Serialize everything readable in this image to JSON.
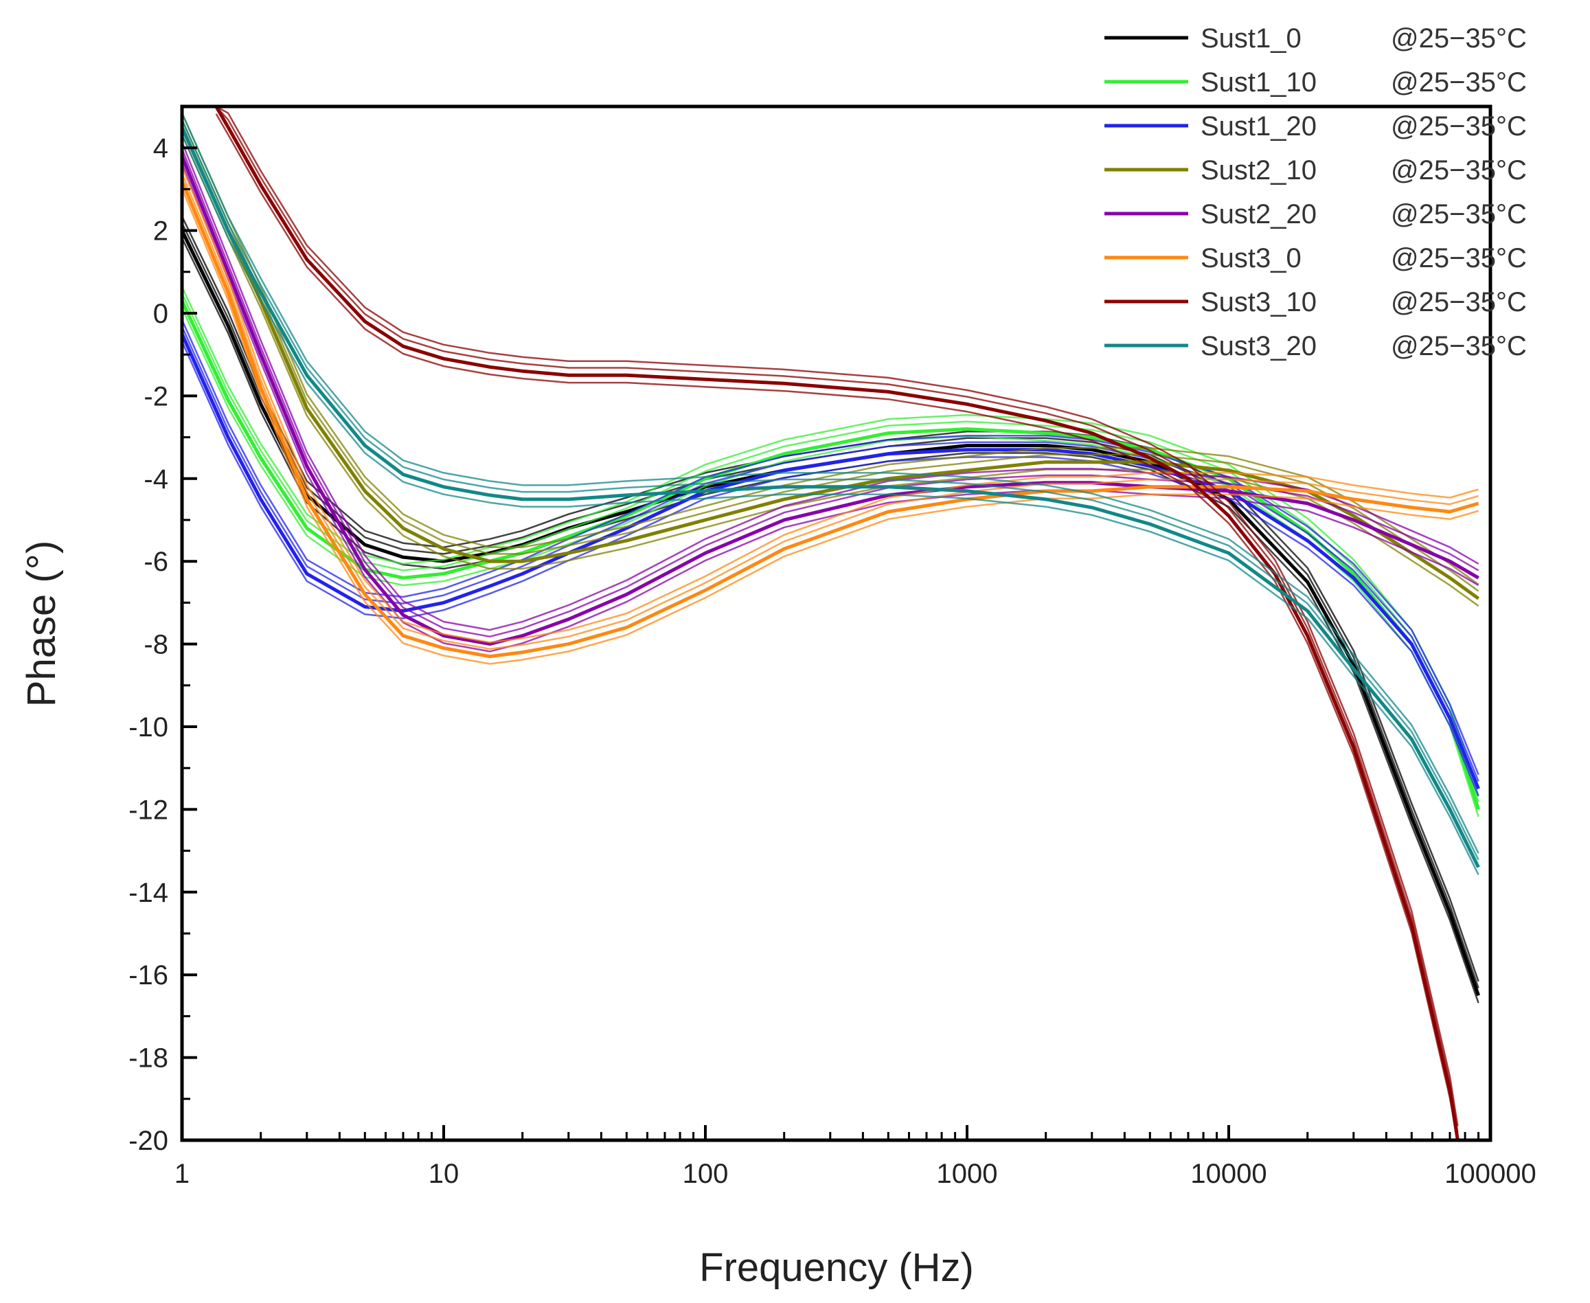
{
  "chart_data": {
    "type": "line",
    "title": "",
    "xlabel": "Frequency (Hz)",
    "ylabel": "Phase (°)",
    "xscale": "log",
    "xlim": [
      1,
      100000
    ],
    "ylim": [
      -20,
      5
    ],
    "x_ticks": [
      1,
      10,
      100,
      1000,
      10000,
      100000
    ],
    "x_tick_labels": [
      "1",
      "10",
      "100",
      "1000",
      "10000",
      "100000"
    ],
    "y_ticks": [
      4,
      2,
      0,
      -2,
      -4,
      -6,
      -8,
      -10,
      -12,
      -14,
      -16,
      -18,
      -20
    ],
    "y_tick_labels": [
      "4",
      "2",
      "0",
      "-2",
      "-4",
      "-6",
      "-8",
      "-10",
      "-12",
      "-14",
      "-16",
      "-18",
      "-20"
    ],
    "grid": false,
    "legend_position": "top-right",
    "series": [
      {
        "name": "Sust1_0",
        "condition": "@25−35°C",
        "color": "#000000",
        "x": [
          1,
          1.5,
          2,
          3,
          5,
          7,
          10,
          15,
          20,
          30,
          50,
          100,
          200,
          500,
          1000,
          2000,
          3000,
          5000,
          10000,
          20000,
          30000,
          50000,
          70000,
          90000
        ],
        "y": [
          2,
          -0.3,
          -2.2,
          -4.4,
          -5.6,
          -5.9,
          -6.0,
          -5.8,
          -5.6,
          -5.2,
          -4.8,
          -4.2,
          -3.8,
          -3.4,
          -3.2,
          -3.2,
          -3.3,
          -3.6,
          -4.5,
          -6.5,
          -8.5,
          -12.2,
          -14.5,
          -16.5
        ]
      },
      {
        "name": "Sust1_10",
        "condition": "@25−35°C",
        "color": "#33ee33",
        "x": [
          1,
          1.5,
          2,
          3,
          5,
          7,
          10,
          15,
          20,
          30,
          50,
          100,
          200,
          500,
          1000,
          2000,
          3000,
          5000,
          10000,
          20000,
          30000,
          50000,
          70000,
          90000
        ],
        "y": [
          0.3,
          -2.1,
          -3.5,
          -5.2,
          -6.2,
          -6.4,
          -6.3,
          -6.0,
          -5.8,
          -5.4,
          -4.9,
          -4.0,
          -3.4,
          -2.9,
          -2.8,
          -2.9,
          -3.0,
          -3.3,
          -4.0,
          -5.3,
          -6.3,
          -8.0,
          -9.8,
          -12.0
        ]
      },
      {
        "name": "Sust1_20",
        "condition": "@25−35°C",
        "color": "#2222ee",
        "x": [
          1,
          1.5,
          2,
          3,
          5,
          7,
          10,
          15,
          20,
          30,
          50,
          100,
          200,
          500,
          1000,
          2000,
          3000,
          5000,
          10000,
          20000,
          30000,
          50000,
          70000,
          90000
        ],
        "y": [
          -0.5,
          -3.0,
          -4.5,
          -6.3,
          -7.1,
          -7.2,
          -7.0,
          -6.6,
          -6.3,
          -5.8,
          -5.2,
          -4.3,
          -3.8,
          -3.4,
          -3.3,
          -3.3,
          -3.4,
          -3.7,
          -4.3,
          -5.5,
          -6.4,
          -8.0,
          -9.8,
          -11.5
        ]
      },
      {
        "name": "Sust2_10",
        "condition": "@25−35°C",
        "color": "#808000",
        "x": [
          1,
          1.5,
          2,
          3,
          5,
          7,
          10,
          15,
          20,
          30,
          50,
          100,
          200,
          500,
          1000,
          2000,
          3000,
          5000,
          10000,
          20000,
          30000,
          50000,
          70000,
          90000
        ],
        "y": [
          4.5,
          2.0,
          0.3,
          -2.3,
          -4.3,
          -5.2,
          -5.7,
          -6.0,
          -6.0,
          -5.8,
          -5.5,
          -5.0,
          -4.5,
          -4.0,
          -3.8,
          -3.6,
          -3.6,
          -3.6,
          -3.8,
          -4.3,
          -4.9,
          -5.8,
          -6.4,
          -6.9
        ]
      },
      {
        "name": "Sust2_20",
        "condition": "@25−35°C",
        "color": "#8800aa",
        "x": [
          1,
          1.5,
          2,
          3,
          5,
          7,
          10,
          15,
          20,
          30,
          50,
          100,
          200,
          500,
          1000,
          2000,
          3000,
          5000,
          10000,
          20000,
          30000,
          50000,
          70000,
          90000
        ],
        "y": [
          3.8,
          1.0,
          -1.0,
          -3.7,
          -6.2,
          -7.3,
          -7.8,
          -8.0,
          -7.8,
          -7.4,
          -6.8,
          -5.8,
          -5.0,
          -4.4,
          -4.2,
          -4.1,
          -4.1,
          -4.2,
          -4.3,
          -4.6,
          -5.0,
          -5.6,
          -6.0,
          -6.4
        ]
      },
      {
        "name": "Sust3_0",
        "condition": "@25−35°C",
        "color": "#ff8811",
        "x": [
          1,
          1.5,
          2,
          3,
          5,
          7,
          10,
          15,
          20,
          30,
          50,
          100,
          200,
          500,
          1000,
          2000,
          3000,
          5000,
          10000,
          20000,
          30000,
          50000,
          70000,
          90000
        ],
        "y": [
          3.2,
          0.5,
          -1.8,
          -4.5,
          -6.8,
          -7.8,
          -8.1,
          -8.3,
          -8.2,
          -8.0,
          -7.6,
          -6.7,
          -5.7,
          -4.8,
          -4.5,
          -4.3,
          -4.3,
          -4.2,
          -4.2,
          -4.3,
          -4.5,
          -4.7,
          -4.8,
          -4.6
        ]
      },
      {
        "name": "Sust3_10",
        "condition": "@25−35°C",
        "color": "#8b0000",
        "x": [
          1.35,
          1.5,
          2,
          3,
          5,
          7,
          10,
          15,
          20,
          30,
          50,
          100,
          200,
          500,
          1000,
          2000,
          3000,
          5000,
          7000,
          10000,
          15000,
          20000,
          30000,
          50000,
          70000,
          75000
        ],
        "y": [
          5,
          4.5,
          3.1,
          1.3,
          -0.2,
          -0.8,
          -1.1,
          -1.3,
          -1.4,
          -1.5,
          -1.5,
          -1.6,
          -1.7,
          -1.9,
          -2.2,
          -2.6,
          -2.9,
          -3.5,
          -4.0,
          -4.9,
          -6.3,
          -7.8,
          -10.5,
          -14.8,
          -18.8,
          -20
        ]
      },
      {
        "name": "Sust3_20",
        "condition": "@25−35°C",
        "color": "#118888",
        "x": [
          1,
          1.5,
          2,
          3,
          5,
          7,
          10,
          15,
          20,
          30,
          50,
          100,
          200,
          500,
          1000,
          2000,
          3000,
          5000,
          10000,
          20000,
          30000,
          50000,
          70000,
          90000
        ],
        "y": [
          4.5,
          2.0,
          0.5,
          -1.5,
          -3.2,
          -3.9,
          -4.2,
          -4.4,
          -4.5,
          -4.5,
          -4.4,
          -4.3,
          -4.2,
          -4.2,
          -4.3,
          -4.5,
          -4.7,
          -5.1,
          -5.8,
          -7.2,
          -8.6,
          -10.3,
          -12.0,
          -13.4
        ]
      }
    ]
  }
}
